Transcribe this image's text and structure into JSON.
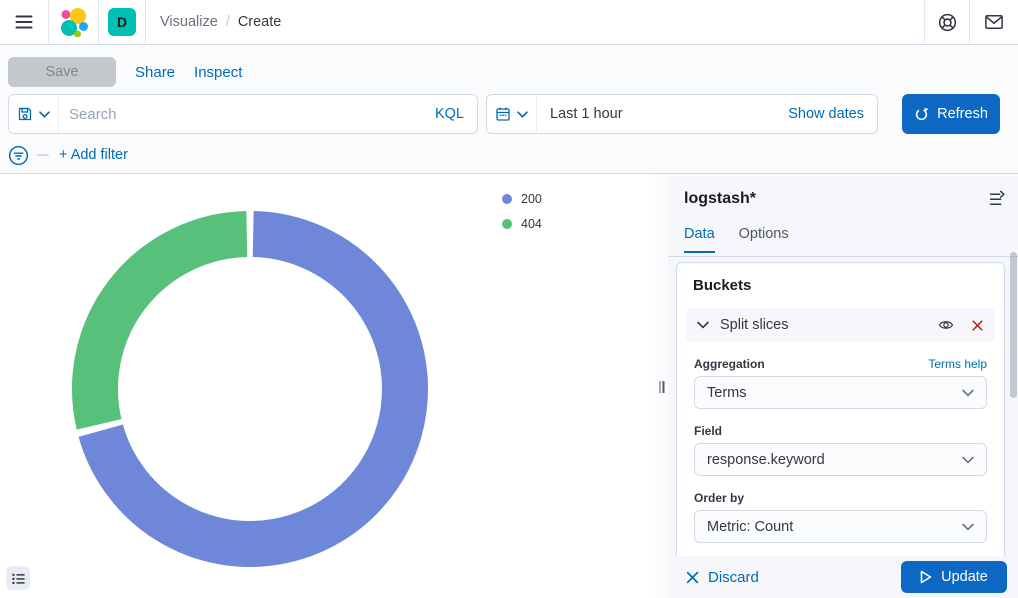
{
  "header": {
    "breadcrumbs": [
      {
        "label": "Visualize"
      },
      {
        "label": "Create"
      }
    ],
    "space_badge": "D"
  },
  "toolbar": {
    "save_label": "Save",
    "share_label": "Share",
    "inspect_label": "Inspect"
  },
  "query_bar": {
    "search_placeholder": "Search",
    "language": "KQL",
    "time_range": "Last 1 hour",
    "show_dates_label": "Show dates",
    "refresh_label": "Refresh"
  },
  "filter_bar": {
    "add_filter_label": "+ Add filter"
  },
  "chart_data": {
    "type": "pie",
    "donut": true,
    "labels": [
      "200",
      "404"
    ],
    "values_pct": [
      71,
      29
    ],
    "colors": [
      "#6F87D8",
      "#57C17B"
    ],
    "legend_position": "top-right",
    "metric": "Count",
    "split_field": "response.keyword"
  },
  "panel": {
    "index_pattern": "logstash*",
    "tabs": [
      {
        "label": "Data",
        "active": true
      },
      {
        "label": "Options",
        "active": false
      }
    ],
    "buckets": {
      "heading": "Buckets",
      "accordion_label": "Split slices",
      "fields": [
        {
          "name": "aggregation",
          "label": "Aggregation",
          "value": "Terms",
          "help": "Terms help"
        },
        {
          "name": "field",
          "label": "Field",
          "value": "response.keyword"
        },
        {
          "name": "order-by",
          "label": "Order by",
          "value": "Metric: Count"
        }
      ]
    },
    "actions": {
      "discard_label": "Discard",
      "update_label": "Update"
    }
  },
  "icons": {
    "menu_icon": "≡",
    "help_icon": "life-ring",
    "mail_icon": "✉",
    "saved_query_icon": "floppy-disk",
    "calendar_icon": "calendar",
    "refresh_icon": "⟳",
    "filter_icon": "filter-circle",
    "legend_toggle_icon": "list",
    "collapse_panel_icon": "arrow-right-lines",
    "eye_icon": "eye",
    "close_icon": "✕",
    "play_icon": "▷",
    "chevron_down_icon": "⌄"
  }
}
